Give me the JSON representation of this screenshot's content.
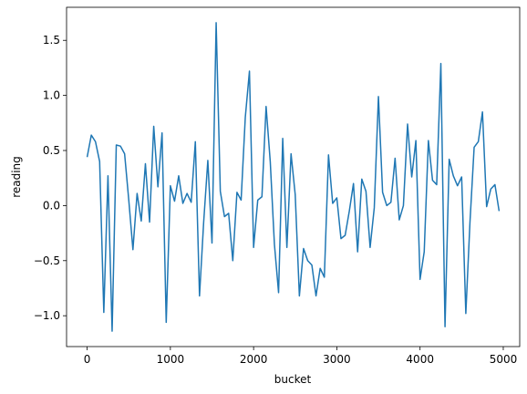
{
  "chart_data": {
    "type": "line",
    "xlabel": "bucket",
    "ylabel": "reading",
    "x": [
      0,
      50,
      100,
      150,
      200,
      250,
      300,
      350,
      400,
      450,
      500,
      550,
      600,
      650,
      700,
      750,
      800,
      850,
      900,
      950,
      1000,
      1050,
      1100,
      1150,
      1200,
      1250,
      1300,
      1350,
      1400,
      1450,
      1500,
      1550,
      1600,
      1650,
      1700,
      1750,
      1800,
      1850,
      1900,
      1950,
      2000,
      2050,
      2100,
      2150,
      2200,
      2250,
      2300,
      2350,
      2400,
      2450,
      2500,
      2550,
      2600,
      2650,
      2700,
      2750,
      2800,
      2850,
      2900,
      2950,
      3000,
      3050,
      3100,
      3150,
      3200,
      3250,
      3300,
      3350,
      3400,
      3450,
      3500,
      3550,
      3600,
      3650,
      3700,
      3750,
      3800,
      3850,
      3900,
      3950,
      4000,
      4050,
      4100,
      4150,
      4200,
      4250,
      4300,
      4350,
      4400,
      4450,
      4500,
      4550,
      4600,
      4650,
      4700,
      4750,
      4800,
      4850,
      4900,
      4950
    ],
    "series": [
      {
        "color": "#1f77b4",
        "values": [
          0.44,
          0.64,
          0.58,
          0.4,
          -0.97,
          0.27,
          -1.14,
          0.55,
          0.54,
          0.47,
          0.05,
          -0.4,
          0.11,
          -0.14,
          0.38,
          -0.15,
          0.72,
          0.17,
          0.66,
          -1.06,
          0.18,
          0.04,
          0.27,
          0.02,
          0.11,
          0.03,
          0.58,
          -0.82,
          -0.15,
          0.41,
          -0.34,
          1.66,
          0.13,
          -0.1,
          -0.07,
          -0.5,
          0.12,
          0.05,
          0.8,
          1.22,
          -0.38,
          0.05,
          0.08,
          0.9,
          0.4,
          -0.35,
          -0.79,
          0.61,
          -0.38,
          0.47,
          0.1,
          -0.82,
          -0.39,
          -0.5,
          -0.54,
          -0.82,
          -0.57,
          -0.65,
          0.46,
          0.02,
          0.07,
          -0.3,
          -0.27,
          -0.05,
          0.2,
          -0.42,
          0.24,
          0.13,
          -0.38,
          -0.02,
          0.99,
          0.12,
          0.0,
          0.03,
          0.43,
          -0.13,
          0.0,
          0.74,
          0.26,
          0.59,
          -0.67,
          -0.42,
          0.59,
          0.23,
          0.19,
          1.29,
          -1.1,
          0.42,
          0.27,
          0.18,
          0.26,
          -0.98,
          -0.15,
          0.53,
          0.58,
          0.85,
          -0.01,
          0.15,
          0.19,
          -0.05
        ]
      }
    ],
    "xlim": [
      -247.5,
      5197.5
    ],
    "ylim": [
      -1.28,
      1.8
    ],
    "xticks": [
      0,
      1000,
      2000,
      3000,
      4000,
      5000
    ],
    "yticks": [
      {
        "value": -1.0,
        "label": "−1.0"
      },
      {
        "value": -0.5,
        "label": "−0.5"
      },
      {
        "value": 0.0,
        "label": "0.0"
      },
      {
        "value": 0.5,
        "label": "0.5"
      },
      {
        "value": 1.0,
        "label": "1.0"
      },
      {
        "value": 1.5,
        "label": "1.5"
      }
    ],
    "grid": false
  }
}
